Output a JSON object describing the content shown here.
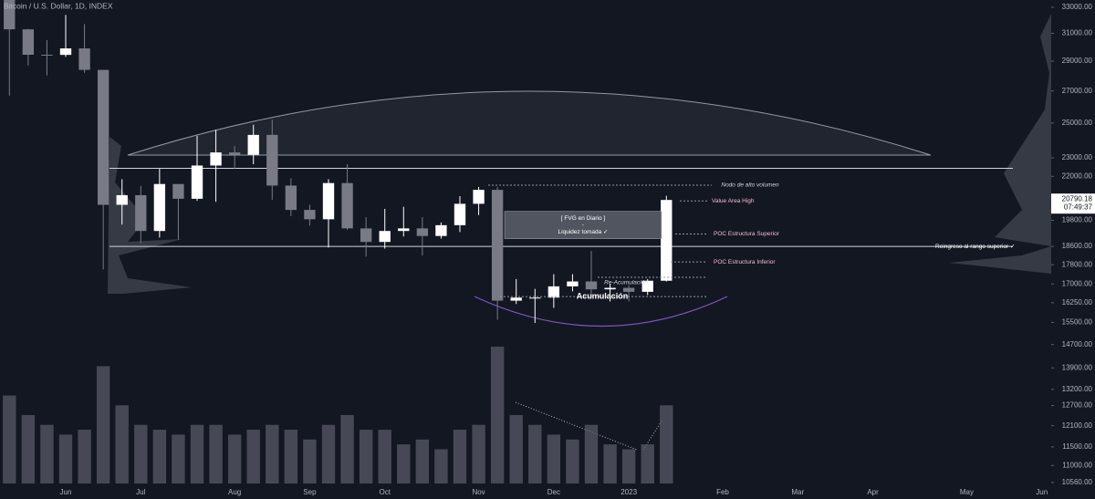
{
  "chart_data": {
    "type": "candlestick",
    "title": "Bitcoin / U.S. Dollar, 1D, INDEX",
    "countdown": "07:49:37",
    "log_scale": true,
    "up_color": "#ffffff",
    "down_color": "#787b86",
    "volume_color": "#5d606b",
    "categories": [
      null,
      null,
      null,
      "Jun",
      null,
      null,
      null,
      "Jul",
      null,
      null,
      null,
      null,
      "Aug",
      null,
      null,
      null,
      "Sep",
      null,
      null,
      null,
      "Oct",
      null,
      null,
      null,
      null,
      "Nov",
      null,
      null,
      null,
      "Dec",
      null,
      null,
      null,
      "2023",
      null,
      null,
      null,
      null,
      "Feb",
      null,
      null,
      null,
      "Mar",
      null,
      null,
      null,
      "Apr",
      null,
      null,
      null,
      null,
      "May",
      null,
      null,
      null,
      "Jun"
    ],
    "open": [
      34060,
      31300,
      29450,
      29440,
      29900,
      28400,
      20550,
      21030,
      19300,
      21600,
      20850,
      22580,
      23300,
      23170,
      24300,
      21520,
      20300,
      19850,
      21650,
      19420,
      18800,
      19300,
      19420,
      19070,
      19570,
      20600,
      21300,
      16330,
      16450,
      16450,
      16900,
      17100,
      16780,
      16840,
      16680,
      17130,
      null,
      null,
      null,
      null,
      null,
      null,
      null,
      null,
      null,
      null,
      null,
      null,
      null,
      null,
      null,
      null,
      null,
      null,
      null,
      null
    ],
    "high": [
      34240,
      31330,
      30500,
      32400,
      31700,
      28400,
      21850,
      21500,
      22400,
      21600,
      24250,
      24600,
      23650,
      24900,
      25200,
      21900,
      20550,
      21850,
      22650,
      19950,
      20350,
      20450,
      19950,
      19700,
      20980,
      21450,
      21450,
      17200,
      16800,
      17400,
      17400,
      18400,
      17000,
      16950,
      17200,
      21000,
      null,
      null,
      null,
      null,
      null,
      null,
      null,
      null,
      null,
      null,
      null,
      null,
      null,
      null,
      null,
      null,
      null,
      null,
      null,
      null
    ],
    "low": [
      26700,
      28700,
      28020,
      29300,
      28200,
      17600,
      19600,
      18750,
      19000,
      18900,
      20750,
      20700,
      22400,
      22650,
      20800,
      20000,
      19550,
      18550,
      19350,
      18150,
      18500,
      19050,
      18200,
      18950,
      19250,
      20050,
      15600,
      16200,
      15480,
      16050,
      16700,
      16500,
      16300,
      16300,
      16550,
      17100,
      null,
      null,
      null,
      null,
      null,
      null,
      null,
      null,
      null,
      null,
      null,
      null,
      null,
      null,
      null,
      null,
      null,
      null,
      null,
      null
    ],
    "close": [
      31300,
      29450,
      29440,
      29900,
      28400,
      20550,
      21030,
      19300,
      21600,
      20850,
      22580,
      23300,
      23170,
      24300,
      21520,
      20300,
      19850,
      21650,
      19420,
      18800,
      19300,
      19420,
      19070,
      19570,
      20600,
      21300,
      16330,
      16450,
      16450,
      16900,
      17100,
      16780,
      16840,
      16680,
      17130,
      20790.18,
      null,
      null,
      null,
      null,
      null,
      null,
      null,
      null,
      null,
      null,
      null,
      null,
      null,
      null,
      null,
      null,
      null,
      null,
      null,
      null
    ],
    "volume": [
      90,
      70,
      60,
      50,
      55,
      120,
      80,
      60,
      55,
      50,
      60,
      60,
      50,
      55,
      60,
      55,
      45,
      60,
      70,
      55,
      55,
      40,
      45,
      35,
      55,
      60,
      140,
      70,
      60,
      50,
      45,
      60,
      40,
      35,
      40,
      80,
      null,
      null,
      null,
      null,
      null,
      null,
      null,
      null,
      null,
      null,
      null,
      null,
      null,
      null,
      null,
      null,
      null,
      null,
      null,
      null
    ],
    "ylim": [
      10150,
      33580
    ],
    "yticks": [
      {
        "value": 33000,
        "label": "33000.00"
      },
      {
        "value": 31000,
        "label": "31000.00"
      },
      {
        "value": 29000,
        "label": "29000.00"
      },
      {
        "value": 27000,
        "label": "27000.00"
      },
      {
        "value": 25000,
        "label": "25000.00"
      },
      {
        "value": 23000,
        "label": "23000.00"
      },
      {
        "value": 22000,
        "label": "22000.00"
      },
      {
        "value": 19800,
        "label": "19800.00"
      },
      {
        "value": 18600,
        "label": "18600.00"
      },
      {
        "value": 17800,
        "label": "17800.00"
      },
      {
        "value": 17000,
        "label": "17000.00"
      },
      {
        "value": 16250,
        "label": "16250.00"
      },
      {
        "value": 15500,
        "label": "15500.00"
      },
      {
        "value": 14700,
        "label": "14700.00"
      },
      {
        "value": 13900,
        "label": "13900.00"
      },
      {
        "value": 13200,
        "label": "13200.00"
      },
      {
        "value": 12700,
        "label": "12700.00"
      },
      {
        "value": 12100,
        "label": "12100.00"
      },
      {
        "value": 11500,
        "label": "11500.00"
      },
      {
        "value": 11000,
        "label": "11000.00"
      },
      {
        "value": 10560,
        "label": "10560.00"
      }
    ],
    "levels": [
      22430,
      18600
    ],
    "annotations": [
      {
        "text": "Nodo de alto volumen",
        "price": 21540
      },
      {
        "text": "Value Area High",
        "price": 20740
      },
      {
        "text": "POC Estructura Superior",
        "price": 19160
      },
      {
        "text": "Reingreso al rango superior ✓",
        "price": 18600
      },
      {
        "text": "POC Estructura Inferior",
        "price": 17920
      },
      {
        "text": "Re-Acumulación",
        "price": 17270
      },
      {
        "text": "Acumulación",
        "price": 16490
      }
    ],
    "fvg_box": {
      "lines": [
        "[ FVG en Diario ]",
        "-",
        "Liquidez tomada ✓"
      ],
      "top": 20230,
      "bottom": 18950
    }
  }
}
